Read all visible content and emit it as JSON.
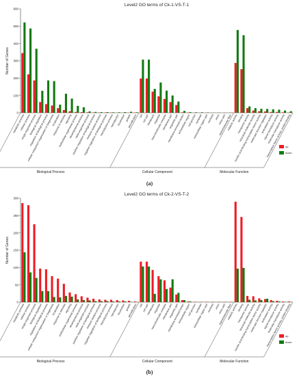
{
  "colors": {
    "up": "#ee1c25",
    "down": "#127a12",
    "axis": "#444444"
  },
  "panels": [
    {
      "label": "(a)",
      "chart_data": {
        "type": "bar",
        "title": "Level2 GO terms of Ck-1-VS-T-1",
        "ylabel": "Number of Genes",
        "ylim": [
          0,
          600
        ],
        "yticks": [
          0,
          100,
          200,
          300,
          400,
          500,
          600
        ],
        "legend": {
          "placement": "right-bottom",
          "entries": [
            "up",
            "down"
          ]
        },
        "series_names": [
          "up",
          "down"
        ],
        "groups": [
          {
            "name": "Biological Process",
            "categories": [
              "metabolic process",
              "cellular process",
              "single-organism process",
              "biological regulation",
              "regulation of biological process",
              "cellular component organization or biogenesis",
              "localization",
              "response to stimulus",
              "signaling",
              "multicellular organismal process",
              "developmental process",
              "multi-organism process",
              "positive regulation of biological process",
              "immune system process",
              "negative regulation of biological process",
              "reproductive process",
              "reproduction",
              "locomotion",
              "growth",
              "detoxification"
            ],
            "up": [
              345,
              222,
              187,
              62,
              50,
              42,
              27,
              16,
              9,
              5,
              4,
              3,
              2,
              2,
              2,
              2,
              1,
              1,
              1,
              2
            ],
            "down": [
              522,
              487,
              370,
              127,
              187,
              183,
              47,
              110,
              82,
              40,
              32,
              8,
              5,
              4,
              4,
              3,
              3,
              4,
              6,
              3
            ]
          },
          {
            "name": "Cellular Component",
            "categories": [
              "cell",
              "cell part",
              "membrane",
              "organelle",
              "macromolecular complex",
              "membrane part",
              "organelle part",
              "membrane-enclosed lumen",
              "extracellular region",
              "cell junction",
              "symplast",
              "extracellular region part",
              "nucleoid",
              "virion",
              "virion part",
              "supramolecular fiber"
            ],
            "up": [
              198,
              198,
              122,
              95,
              80,
              62,
              45,
              3,
              2,
              1,
              1,
              1,
              1,
              1,
              1,
              1
            ],
            "down": [
              307,
              307,
              138,
              175,
              128,
              100,
              65,
              11,
              4,
              3,
              3,
              2,
              1,
              1,
              1,
              1
            ]
          },
          {
            "name": "Molecular Function",
            "categories": [
              "catalytic activity",
              "binding",
              "transporter activity",
              "structural molecule activity",
              "nucleic acid binding transcription factor activity",
              "molecular function regulator",
              "antioxidant activity",
              "signal transducer activity",
              "molecular transducer activity",
              "transcription factor activity, protein binding"
            ],
            "up": [
              288,
              252,
              27,
              13,
              9,
              8,
              5,
              5,
              3,
              2
            ],
            "down": [
              478,
              448,
              37,
              27,
              23,
              22,
              20,
              18,
              13,
              9
            ]
          }
        ]
      }
    },
    {
      "label": "(b)",
      "chart_data": {
        "type": "bar",
        "title": "Level2 GO terms of Ck-2-VS-T-2",
        "ylabel": "Number of Genes",
        "ylim": [
          0,
          300
        ],
        "yticks": [
          0,
          50,
          100,
          150,
          200,
          250,
          300
        ],
        "legend": {
          "placement": "right-bottom",
          "entries": [
            "up",
            "down"
          ]
        },
        "series_names": [
          "up",
          "down"
        ],
        "groups": [
          {
            "name": "Biological Process",
            "categories": [
              "metabolic process",
              "cellular process",
              "single-organism process",
              "biological regulation",
              "regulation of biological process",
              "cellular component organization or biogenesis",
              "localization",
              "response to stimulus",
              "signaling",
              "multicellular organismal process",
              "developmental process",
              "multi-organism process",
              "positive regulation of biological process",
              "immune system process",
              "negative regulation of biological process",
              "reproductive process",
              "reproduction",
              "locomotion",
              "growth",
              "detoxification"
            ],
            "up": [
              286,
              280,
              225,
              97,
              95,
              75,
              68,
              53,
              28,
              23,
              17,
              13,
              10,
              8,
              7,
              7,
              6,
              5,
              4,
              2
            ],
            "down": [
              144,
              86,
              70,
              32,
              32,
              15,
              14,
              18,
              16,
              8,
              6,
              5,
              3,
              3,
              3,
              2,
              2,
              2,
              1,
              1
            ]
          },
          {
            "name": "Cellular Component",
            "categories": [
              "cell",
              "cell part",
              "membrane",
              "organelle",
              "macromolecular complex",
              "membrane part",
              "organelle part",
              "membrane-enclosed lumen",
              "extracellular region",
              "cell junction",
              "symplast",
              "extracellular region part",
              "nucleoid",
              "virion",
              "virion part",
              "supramolecular fiber"
            ],
            "up": [
              117,
              117,
              93,
              75,
              63,
              42,
              22,
              6,
              2,
              1,
              1,
              1,
              1,
              1,
              1,
              1
            ],
            "down": [
              103,
              103,
              24,
              66,
              38,
              66,
              27,
              6,
              2,
              1,
              1,
              1,
              1,
              1,
              1,
              1
            ]
          },
          {
            "name": "Molecular Function",
            "categories": [
              "catalytic activity",
              "binding",
              "transporter activity",
              "structural molecule activity",
              "nucleic acid binding transcription factor activity",
              "molecular function regulator",
              "antioxidant activity",
              "signal transducer activity",
              "molecular transducer activity",
              "transcription factor activity, protein binding"
            ],
            "up": [
              290,
              246,
              18,
              17,
              11,
              9,
              6,
              4,
              2,
              2
            ],
            "down": [
              97,
              99,
              7,
              5,
              6,
              10,
              3,
              2,
              1,
              1
            ]
          }
        ]
      }
    }
  ]
}
